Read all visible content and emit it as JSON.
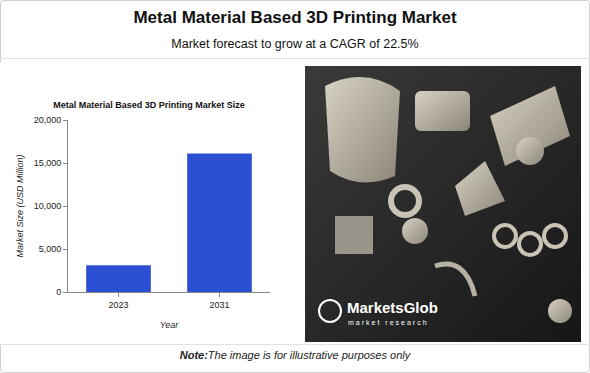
{
  "header": {
    "title": "Metal Material Based 3D Printing Market",
    "subtitle": "Market forecast to grow at a CAGR of 22.5%"
  },
  "chart_data": {
    "type": "bar",
    "title": "Metal Material Based 3D Printing Market Size",
    "x_label": "Year",
    "y_label": "Market Size (USD Million)",
    "categories": [
      "2023",
      "2031"
    ],
    "values": [
      3100,
      16100
    ],
    "color": "#2b4fd3",
    "ylim": [
      0,
      20000
    ],
    "yticks": [
      0,
      {
        "value": 5000,
        "label": "5,000"
      },
      {
        "value": 10000,
        "label": "10,000"
      },
      {
        "value": 15000,
        "label": "15,000"
      },
      {
        "value": 20000,
        "label": "20,000"
      }
    ],
    "grid": false
  },
  "image": {
    "logo": "MarketsGlob",
    "logo_subtitle": "market research"
  },
  "note": {
    "label": "Note:",
    "text": "The image is for illustrative purposes only"
  }
}
